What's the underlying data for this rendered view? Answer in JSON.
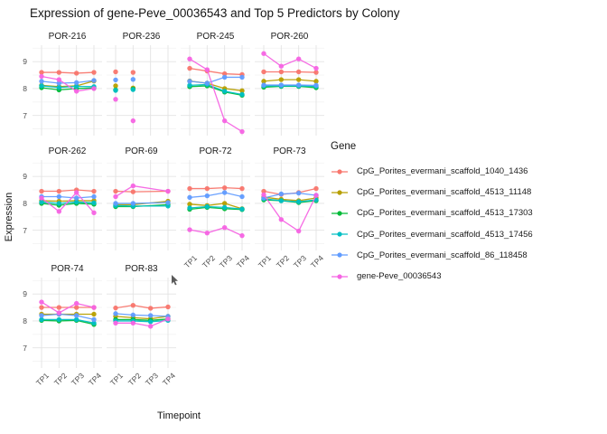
{
  "title": "Expression of gene-Peve_00036543 and Top 5 Predictors by Colony",
  "axis": {
    "x_title": "Timepoint",
    "y_title": "Expression",
    "x_ticks": [
      "TP1",
      "TP2",
      "TP3",
      "TP4"
    ],
    "y_ticks": [
      9,
      8,
      7
    ]
  },
  "legend": {
    "title": "Gene"
  },
  "chart_data": {
    "type": "line",
    "title": "Expression of gene-Peve_00036543 and Top 5 Predictors by Colony",
    "xlabel": "Timepoint",
    "ylabel": "Expression",
    "x_categories": [
      "TP1",
      "TP2",
      "TP3",
      "TP4"
    ],
    "ylim": [
      6.25,
      9.61
    ],
    "y_major_gridlines": [
      7,
      8,
      9
    ],
    "y_minor_gridlines": [
      6.5,
      7.5,
      8.5,
      9.5
    ],
    "legend_position": "right",
    "grid": "on",
    "genes": [
      {
        "id": "s1",
        "label": "CpG_Porites_evermani_scaffold_1040_1436",
        "color": "#F8766D"
      },
      {
        "id": "s2",
        "label": "CpG_Porites_evermani_scaffold_4513_11148",
        "color": "#B79F00"
      },
      {
        "id": "s3",
        "label": "CpG_Porites_evermani_scaffold_4513_17303",
        "color": "#00BA38"
      },
      {
        "id": "s4",
        "label": "CpG_Porites_evermani_scaffold_4513_17456",
        "color": "#00BFC4"
      },
      {
        "id": "s5",
        "label": "CpG_Porites_evermani_scaffold_86_118458",
        "color": "#619CFF"
      },
      {
        "id": "s6",
        "label": "gene-Peve_00036543",
        "color": "#F564E3"
      }
    ],
    "facets": [
      {
        "name": "POR-216",
        "x": [
          1,
          2,
          3,
          4
        ],
        "values": {
          "s1": [
            8.6,
            8.6,
            8.57,
            8.6
          ],
          "s2": [
            8.12,
            8.07,
            8.1,
            8.28
          ],
          "s3": [
            8.03,
            7.95,
            8.0,
            8.02
          ],
          "s4": [
            8.1,
            8.04,
            8.08,
            8.07
          ],
          "s5": [
            8.27,
            8.2,
            8.22,
            8.3
          ],
          "s6": [
            8.45,
            8.33,
            7.9,
            8.0
          ]
        }
      },
      {
        "name": "POR-236",
        "x": [
          1,
          2
        ],
        "lines": false,
        "values": {
          "s1": [
            8.62,
            8.6
          ],
          "s2": [
            8.1,
            8.02
          ],
          "s3": [
            7.95,
            7.98
          ],
          "s4": [
            7.93,
            7.96
          ],
          "s5": [
            8.32,
            8.34
          ],
          "s6": [
            7.6,
            6.8
          ]
        }
      },
      {
        "name": "POR-245",
        "x": [
          1,
          2,
          3,
          4
        ],
        "values": {
          "s1": [
            8.75,
            8.65,
            8.55,
            8.52
          ],
          "s2": [
            8.28,
            8.2,
            8.0,
            7.92
          ],
          "s3": [
            8.07,
            8.1,
            7.87,
            7.75
          ],
          "s4": [
            8.12,
            8.15,
            7.9,
            7.78
          ],
          "s5": [
            8.27,
            8.2,
            8.42,
            8.42
          ],
          "s6": [
            9.1,
            8.7,
            6.8,
            6.4
          ]
        }
      },
      {
        "name": "POR-260",
        "x": [
          1,
          2,
          3,
          4
        ],
        "values": {
          "s1": [
            8.62,
            8.62,
            8.62,
            8.6
          ],
          "s2": [
            8.27,
            8.33,
            8.33,
            8.27
          ],
          "s3": [
            8.05,
            8.08,
            8.08,
            8.03
          ],
          "s4": [
            8.1,
            8.1,
            8.1,
            8.08
          ],
          "s5": [
            8.13,
            8.13,
            8.13,
            8.12
          ],
          "s6": [
            9.3,
            8.83,
            9.1,
            8.75
          ]
        }
      },
      {
        "name": "POR-262",
        "x": [
          1,
          2,
          3,
          4
        ],
        "values": {
          "s1": [
            8.45,
            8.45,
            8.5,
            8.45
          ],
          "s2": [
            8.1,
            8.08,
            8.1,
            8.1
          ],
          "s3": [
            8.0,
            7.93,
            8.0,
            7.97
          ],
          "s4": [
            8.05,
            8.0,
            8.05,
            8.02
          ],
          "s5": [
            8.25,
            8.25,
            8.2,
            8.25
          ],
          "s6": [
            8.2,
            7.7,
            8.4,
            7.65
          ]
        }
      },
      {
        "name": "POR-69",
        "x": [
          1,
          2,
          4
        ],
        "values": {
          "s1": [
            8.45,
            8.43,
            8.45
          ],
          "s2": [
            7.95,
            7.95,
            8.08
          ],
          "s3": [
            7.88,
            7.88,
            7.95
          ],
          "s4": [
            7.92,
            7.9,
            7.9
          ],
          "s5": [
            8.0,
            8.0,
            8.03
          ],
          "s6": [
            8.25,
            8.65,
            8.45
          ]
        }
      },
      {
        "name": "POR-72",
        "x": [
          1,
          2,
          3,
          4
        ],
        "values": {
          "s1": [
            8.55,
            8.55,
            8.58,
            8.55
          ],
          "s2": [
            7.97,
            7.92,
            8.0,
            7.8
          ],
          "s3": [
            7.78,
            7.85,
            7.8,
            7.77
          ],
          "s4": [
            7.83,
            7.88,
            7.85,
            7.79
          ],
          "s5": [
            8.22,
            8.28,
            8.4,
            8.25
          ],
          "s6": [
            7.02,
            6.9,
            7.1,
            6.8
          ]
        }
      },
      {
        "name": "POR-73",
        "x": [
          1,
          2,
          3,
          4
        ],
        "values": {
          "s1": [
            8.45,
            8.33,
            8.4,
            8.55
          ],
          "s2": [
            8.23,
            8.15,
            8.1,
            8.2
          ],
          "s3": [
            8.13,
            8.1,
            8.03,
            8.1
          ],
          "s4": [
            8.17,
            8.1,
            8.06,
            8.13
          ],
          "s5": [
            8.2,
            8.35,
            8.38,
            8.3
          ],
          "s6": [
            8.32,
            7.4,
            6.97,
            8.3
          ]
        }
      },
      {
        "name": "POR-74",
        "x": [
          1,
          2,
          3,
          4
        ],
        "values": {
          "s1": [
            8.5,
            8.5,
            8.5,
            8.5
          ],
          "s2": [
            8.25,
            8.25,
            8.25,
            8.25
          ],
          "s3": [
            8.02,
            8.0,
            8.02,
            7.87
          ],
          "s4": [
            8.05,
            8.05,
            8.05,
            7.92
          ],
          "s5": [
            8.2,
            8.25,
            8.2,
            8.05
          ],
          "s6": [
            8.7,
            8.3,
            8.65,
            8.5
          ]
        }
      },
      {
        "name": "POR-83",
        "x": [
          1,
          2,
          3,
          4
        ],
        "values": {
          "s1": [
            8.48,
            8.58,
            8.47,
            8.52
          ],
          "s2": [
            8.17,
            8.12,
            8.08,
            8.17
          ],
          "s3": [
            8.05,
            8.05,
            8.02,
            8.07
          ],
          "s4": [
            8.0,
            8.0,
            7.97,
            8.02
          ],
          "s5": [
            8.27,
            8.22,
            8.2,
            8.17
          ],
          "s6": [
            7.92,
            7.92,
            7.8,
            8.07
          ]
        }
      }
    ]
  }
}
